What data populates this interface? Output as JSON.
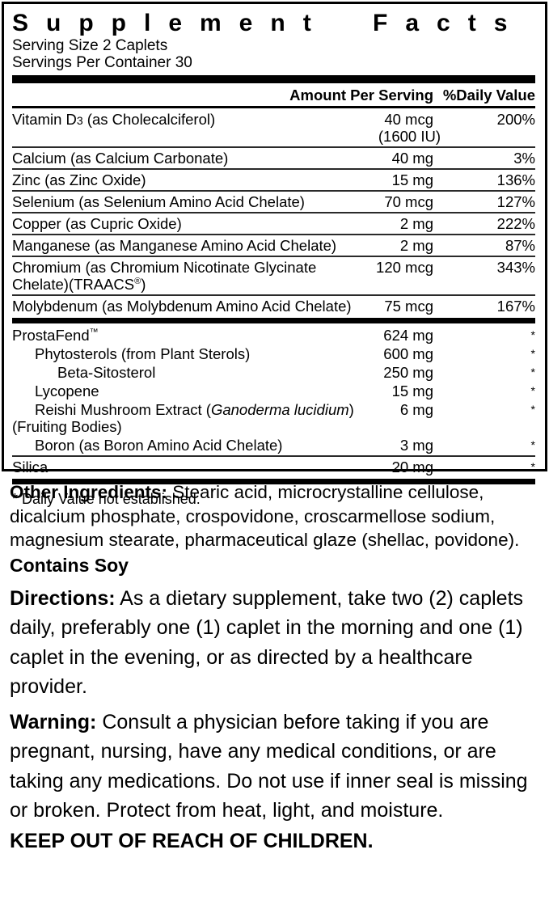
{
  "panel": {
    "title": "Supplement Facts",
    "serving_size": "Serving Size 2 Caplets",
    "servings_per_container": "Servings Per Container 30",
    "header": {
      "amount": "Amount Per Serving",
      "daily_value": "%Daily Value"
    },
    "rows": [
      {
        "name_pre": "Vitamin D",
        "name_sub": "3",
        "name_post": " (as Cholecalciferol)",
        "amount": "40 mcg",
        "amount_alt": "(1600 IU)",
        "dv": "200%"
      },
      {
        "name": "Calcium (as Calcium Carbonate)",
        "amount": "40 mg",
        "dv": "3%"
      },
      {
        "name": "Zinc (as Zinc Oxide)",
        "amount": "15 mg",
        "dv": "136%"
      },
      {
        "name": "Selenium (as Selenium Amino Acid Chelate)",
        "amount": "70 mcg",
        "dv": "127%"
      },
      {
        "name": "Copper (as Cupric Oxide)",
        "amount": "2 mg",
        "dv": "222%"
      },
      {
        "name": "Manganese (as Manganese Amino Acid Chelate)",
        "amount": "2 mg",
        "dv": "87%"
      },
      {
        "name_line1": "Chromium (as Chromium Nicotinate Glycinate",
        "name_line2_pre": "Chelate)(TRAACS",
        "name_line2_sym": "®",
        "name_line2_post": ")",
        "amount": "120 mcg",
        "dv": "343%"
      },
      {
        "name": "Molybdenum (as Molybdenum Amino Acid Chelate)",
        "amount": "75 mcg",
        "dv": "167%"
      },
      {
        "name_pre": "ProstaFend",
        "name_sym": "™",
        "amount": "624 mg",
        "dv": "*"
      },
      {
        "name": "Phytosterols (from Plant Sterols)",
        "amount": "600 mg",
        "dv": "*"
      },
      {
        "name": "Beta-Sitosterol",
        "amount": "250 mg",
        "dv": "*"
      },
      {
        "name": "Lycopene",
        "amount": "15 mg",
        "dv": "*"
      },
      {
        "name_pre": "Reishi Mushroom Extract (",
        "name_italic": "Ganoderma lucidium",
        "name_post": ")",
        "name_line2": "(Fruiting Bodies)",
        "amount": "6 mg",
        "dv": "*"
      },
      {
        "name": "Boron (as Boron Amino Acid Chelate)",
        "amount": "3 mg",
        "dv": "*"
      },
      {
        "name": "Silica",
        "amount": "20 mg",
        "dv": "*"
      }
    ],
    "footnote": "* Daily Value not established."
  },
  "info": {
    "other_ingredients_label": "Other Ingredients:",
    "other_ingredients_text": " Stearic acid, microcrystalline cellulose, dicalcium phosphate, crospovidone, croscarmellose sodium, magnesium stearate, pharmaceutical glaze (shellac, povidone).",
    "contains": "Contains Soy",
    "directions_label": "Directions:",
    "directions_text": " As a dietary supplement, take two (2) caplets daily, preferably one (1) caplet in the morning and one (1) caplet in the evening, or as directed by a healthcare provider.",
    "warning_label": "Warning:",
    "warning_text": " Consult a physician before taking if you are pregnant, nursing, have any medical conditions, or are taking any medications. Do not use if inner seal is missing or broken. Protect from heat, light, and moisture.",
    "keep_out": "KEEP OUT OF REACH OF CHILDREN."
  }
}
